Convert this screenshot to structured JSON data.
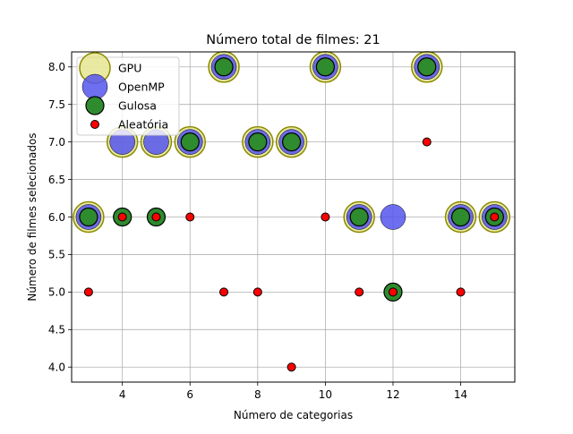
{
  "chart_data": {
    "type": "scatter",
    "title": "Número total de filmes: 21",
    "xlabel": "Número de categorias",
    "ylabel": "Número de filmes selecionados",
    "xlim": [
      2.5,
      15.6
    ],
    "ylim": [
      3.8,
      8.2
    ],
    "xticks": [
      4,
      6,
      8,
      10,
      12,
      14
    ],
    "yticks": [
      4.0,
      4.5,
      5.0,
      5.5,
      6.0,
      6.5,
      7.0,
      7.5,
      8.0
    ],
    "xtick_labels": [
      "4",
      "6",
      "8",
      "10",
      "12",
      "14"
    ],
    "ytick_labels": [
      "4.0",
      "4.5",
      "5.0",
      "5.5",
      "6.0",
      "6.5",
      "7.0",
      "7.5",
      "8.0"
    ],
    "grid": true,
    "legend_position": "top-left",
    "series": [
      {
        "name": "GPU",
        "color": "#e0e07a",
        "x": [
          3,
          4,
          5,
          6,
          7,
          8,
          9,
          10,
          11,
          13,
          14,
          15
        ],
        "y": [
          6,
          7,
          7,
          7,
          8,
          7,
          7,
          8,
          6,
          8,
          6,
          6
        ]
      },
      {
        "name": "OpenMP",
        "color": "#5555ee",
        "x": [
          3,
          4,
          5,
          6,
          7,
          8,
          9,
          10,
          11,
          12,
          13,
          14,
          15
        ],
        "y": [
          6,
          7,
          7,
          7,
          8,
          7,
          7,
          8,
          6,
          6,
          8,
          6,
          6
        ]
      },
      {
        "name": "Gulosa",
        "color": "#2e8b2e",
        "x": [
          3,
          4,
          5,
          6,
          7,
          8,
          9,
          10,
          11,
          12,
          13,
          14,
          15
        ],
        "y": [
          6,
          6,
          6,
          7,
          8,
          7,
          7,
          8,
          6,
          5,
          8,
          6,
          6
        ]
      },
      {
        "name": "Aleatória",
        "color": "#ff0000",
        "x": [
          3,
          4,
          5,
          6,
          7,
          8,
          9,
          10,
          11,
          12,
          13,
          14,
          15
        ],
        "y": [
          5,
          6,
          6,
          6,
          5,
          5,
          4,
          6,
          5,
          5,
          7,
          5,
          6
        ]
      }
    ]
  }
}
